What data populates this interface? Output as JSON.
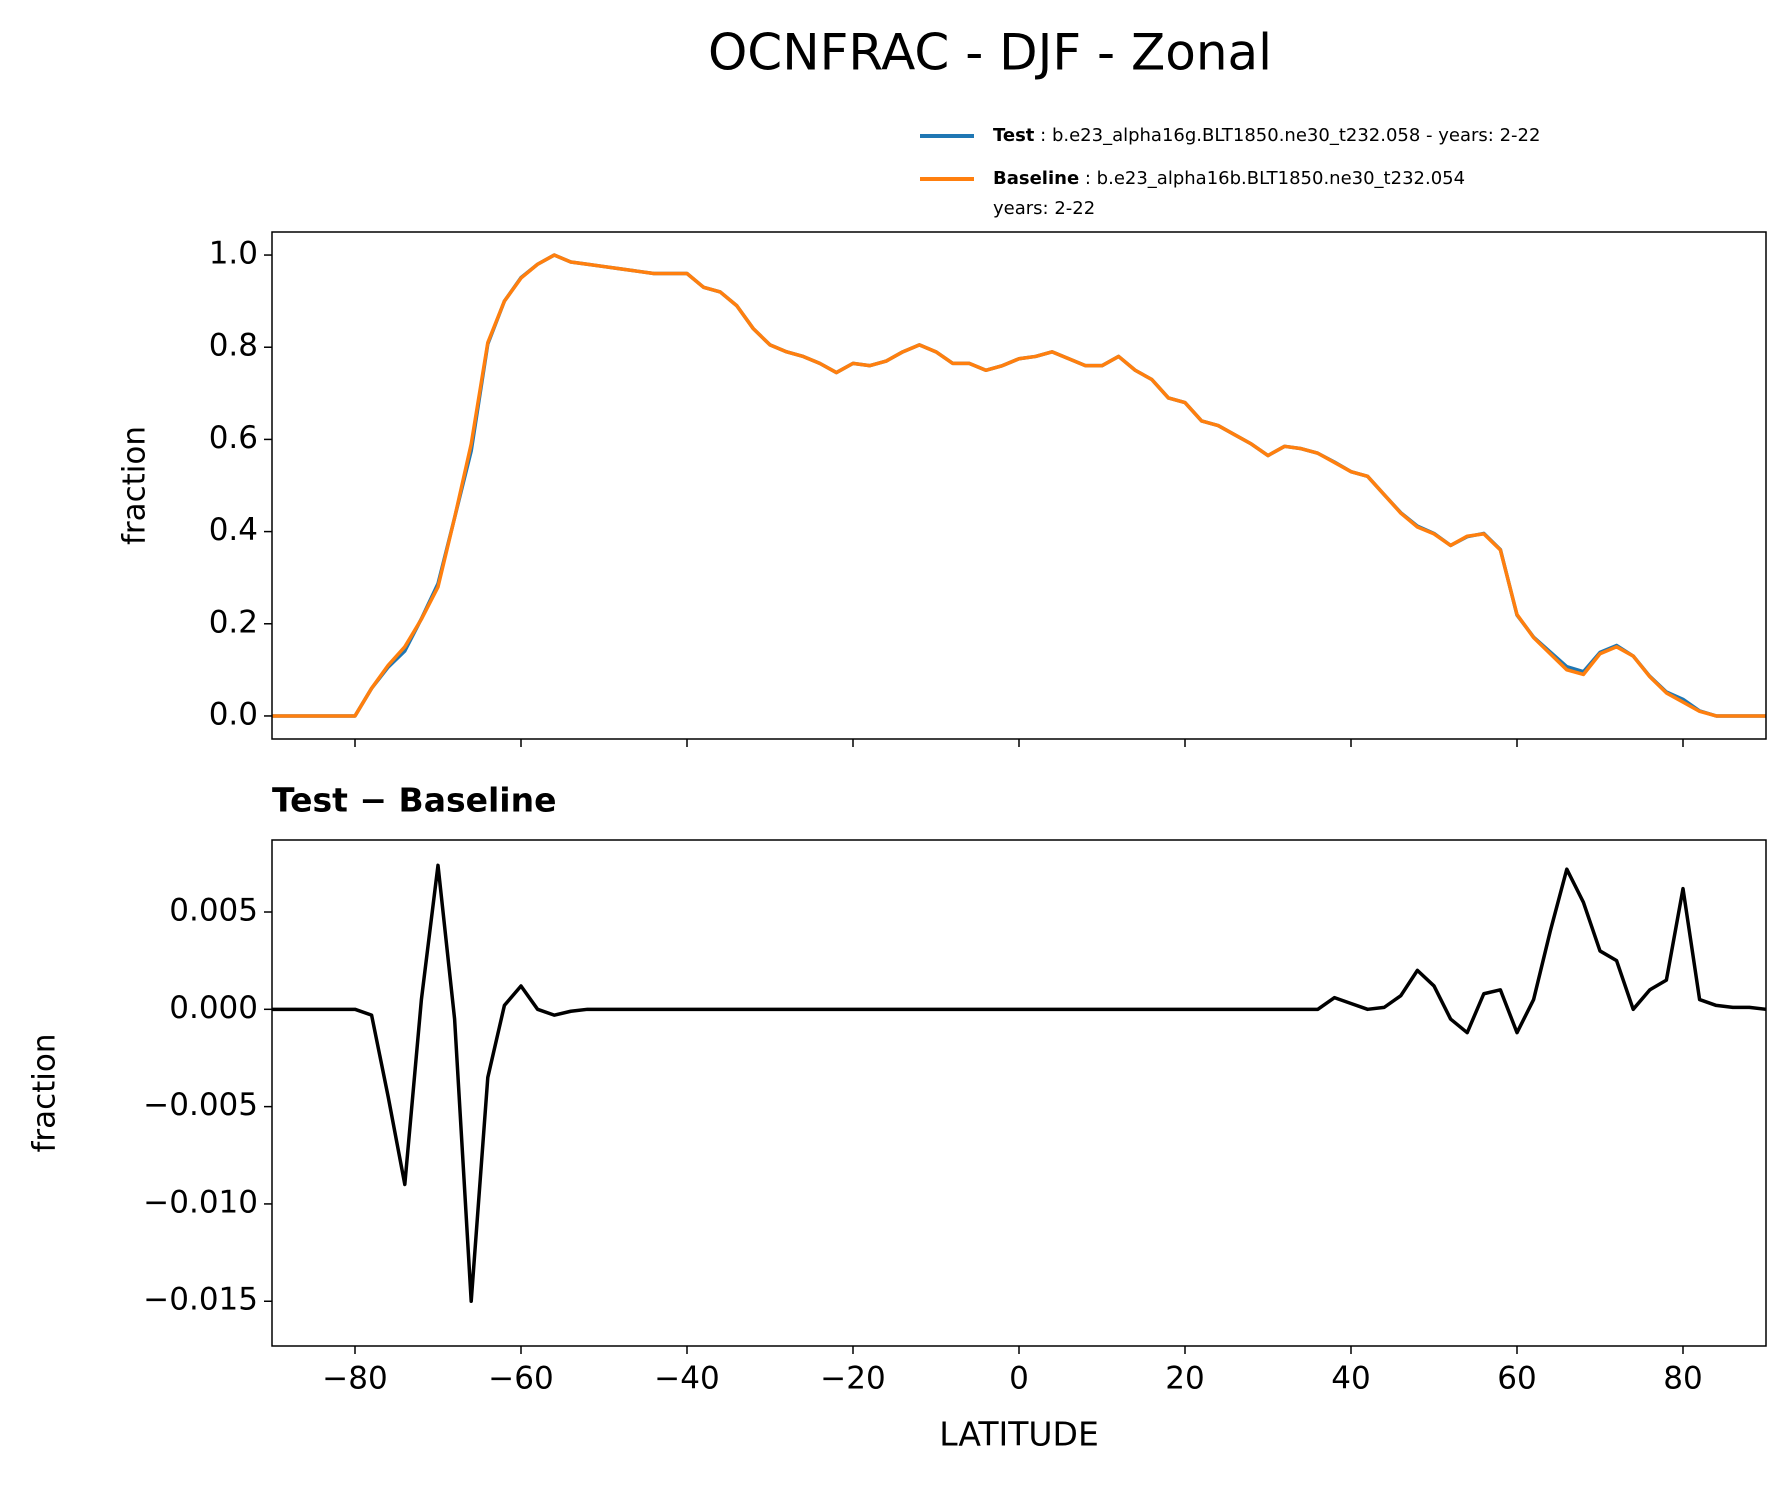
{
  "title": "OCNFRAC - DJF - Zonal",
  "chart_data": [
    {
      "type": "line",
      "ylabel": "fraction",
      "legend": "upper right",
      "x": [
        -90,
        -88,
        -86,
        -84,
        -82,
        -80,
        -78,
        -76,
        -74,
        -72,
        -70,
        -68,
        -66,
        -64,
        -62,
        -60,
        -58,
        -56,
        -54,
        -52,
        -50,
        -48,
        -46,
        -44,
        -42,
        -40,
        -38,
        -36,
        -34,
        -32,
        -30,
        -28,
        -26,
        -24,
        -22,
        -20,
        -18,
        -16,
        -14,
        -12,
        -10,
        -8,
        -6,
        -4,
        -2,
        0,
        2,
        4,
        6,
        8,
        10,
        12,
        14,
        16,
        18,
        20,
        22,
        24,
        26,
        28,
        30,
        32,
        34,
        36,
        38,
        40,
        42,
        44,
        46,
        48,
        50,
        52,
        54,
        56,
        58,
        60,
        62,
        64,
        66,
        68,
        70,
        72,
        74,
        76,
        78,
        80,
        82,
        84,
        86,
        88,
        90
      ],
      "series": [
        {
          "name": "Test",
          "description": [
            "b.e23_alpha16g.BLT1850.ne30_t232.058 - years: 2-22"
          ],
          "color": "#1f77b4",
          "values": [
            0,
            0,
            0,
            0,
            0,
            0,
            0.06,
            0.106,
            0.141,
            0.211,
            0.287,
            0.43,
            0.575,
            0.807,
            0.9,
            0.951,
            0.98,
            1.0,
            0.985,
            0.98,
            0.975,
            0.97,
            0.965,
            0.96,
            0.96,
            0.96,
            0.93,
            0.92,
            0.89,
            0.84,
            0.805,
            0.79,
            0.78,
            0.765,
            0.745,
            0.765,
            0.76,
            0.77,
            0.79,
            0.805,
            0.79,
            0.765,
            0.765,
            0.75,
            0.76,
            0.775,
            0.78,
            0.79,
            0.775,
            0.76,
            0.76,
            0.78,
            0.75,
            0.73,
            0.69,
            0.68,
            0.64,
            0.63,
            0.61,
            0.59,
            0.565,
            0.585,
            0.58,
            0.57,
            0.551,
            0.53,
            0.52,
            0.48,
            0.441,
            0.412,
            0.396,
            0.37,
            0.389,
            0.396,
            0.361,
            0.219,
            0.171,
            0.139,
            0.107,
            0.096,
            0.138,
            0.153,
            0.13,
            0.086,
            0.052,
            0.036,
            0.011,
            0,
            0,
            0,
            0
          ]
        },
        {
          "name": "Baseline",
          "description": [
            "b.e23_alpha16b.BLT1850.ne30_t232.054",
            "years: 2-22"
          ],
          "color": "#ff7f0e",
          "values": [
            0,
            0,
            0,
            0,
            0,
            0,
            0.06,
            0.11,
            0.15,
            0.21,
            0.28,
            0.43,
            0.59,
            0.81,
            0.9,
            0.95,
            0.98,
            1.0,
            0.985,
            0.98,
            0.975,
            0.97,
            0.965,
            0.96,
            0.96,
            0.96,
            0.93,
            0.92,
            0.89,
            0.84,
            0.805,
            0.79,
            0.78,
            0.765,
            0.745,
            0.765,
            0.76,
            0.77,
            0.79,
            0.805,
            0.79,
            0.765,
            0.765,
            0.75,
            0.76,
            0.775,
            0.78,
            0.79,
            0.775,
            0.76,
            0.76,
            0.78,
            0.75,
            0.73,
            0.69,
            0.68,
            0.64,
            0.63,
            0.61,
            0.59,
            0.565,
            0.585,
            0.58,
            0.57,
            0.55,
            0.53,
            0.52,
            0.48,
            0.44,
            0.41,
            0.395,
            0.37,
            0.39,
            0.395,
            0.36,
            0.22,
            0.17,
            0.135,
            0.1,
            0.09,
            0.135,
            0.15,
            0.13,
            0.085,
            0.05,
            0.03,
            0.01,
            0,
            0,
            0,
            0
          ]
        }
      ],
      "xlim": [
        -90,
        90
      ],
      "xticks": [
        -80,
        -60,
        -40,
        -20,
        0,
        20,
        40,
        60,
        80
      ],
      "ylim": [
        -0.05,
        1.05
      ],
      "yticks": [
        {
          "value": 0,
          "label": "0.0"
        },
        0.2,
        0.4,
        0.6,
        0.8,
        {
          "value": 1,
          "label": "1.0"
        }
      ]
    },
    {
      "type": "line",
      "title": "Test − Baseline",
      "xlabel": "LATITUDE",
      "ylabel": "fraction",
      "x": [
        -90,
        -88,
        -86,
        -84,
        -82,
        -80,
        -78,
        -76,
        -74,
        -72,
        -70,
        -68,
        -66,
        -64,
        -62,
        -60,
        -58,
        -56,
        -54,
        -52,
        -50,
        -48,
        -46,
        -44,
        -42,
        -40,
        -38,
        -36,
        -34,
        -32,
        -30,
        -28,
        -26,
        -24,
        -22,
        -20,
        -18,
        -16,
        -14,
        -12,
        -10,
        -8,
        -6,
        -4,
        -2,
        0,
        2,
        4,
        6,
        8,
        10,
        12,
        14,
        16,
        18,
        20,
        22,
        24,
        26,
        28,
        30,
        32,
        34,
        36,
        38,
        40,
        42,
        44,
        46,
        48,
        50,
        52,
        54,
        56,
        58,
        60,
        62,
        64,
        66,
        68,
        70,
        72,
        74,
        76,
        78,
        80,
        82,
        84,
        86,
        88,
        90
      ],
      "series": [
        {
          "color": "#000000",
          "values": [
            0,
            0,
            0,
            0,
            0,
            0,
            -0.0003,
            -0.0045,
            -0.009,
            0.0005,
            0.0074,
            -0.0005,
            -0.015,
            -0.0035,
            0.0002,
            0.0012,
            0,
            -0.0003,
            -0.0001,
            0,
            0,
            0,
            0,
            0,
            0,
            0,
            0,
            0,
            0,
            0,
            0,
            0,
            0,
            0,
            0,
            0,
            0,
            0,
            0,
            0,
            0,
            0,
            0,
            0,
            0,
            0,
            0,
            0,
            0,
            0,
            0,
            0,
            0,
            0,
            0,
            0,
            0,
            0,
            0,
            0,
            0,
            0,
            0,
            0,
            0.0006,
            0.0003,
            0,
            0.0001,
            0.0007,
            0.002,
            0.0012,
            -0.0005,
            -0.0012,
            0.0008,
            0.001,
            -0.0012,
            0.0005,
            0.004,
            0.0072,
            0.0055,
            0.003,
            0.0025,
            0,
            0.001,
            0.0015,
            0.0062,
            0.0005,
            0.0002,
            0.0001,
            0.0001,
            0
          ]
        }
      ],
      "xlim": [
        -90,
        90
      ],
      "xticks": [
        {
          "value": -80,
          "label": "−80"
        },
        {
          "value": -60,
          "label": "−60"
        },
        {
          "value": -40,
          "label": "−40"
        },
        {
          "value": -20,
          "label": "−20"
        },
        0,
        20,
        40,
        60,
        80
      ],
      "ylim": [
        -0.0173,
        0.0087
      ],
      "yticks": [
        {
          "value": -0.015,
          "label": "−0.015"
        },
        {
          "value": -0.01,
          "label": "−0.010"
        },
        {
          "value": -0.005,
          "label": "−0.005"
        },
        {
          "value": 0,
          "label": "0.000"
        },
        0.005
      ]
    }
  ]
}
